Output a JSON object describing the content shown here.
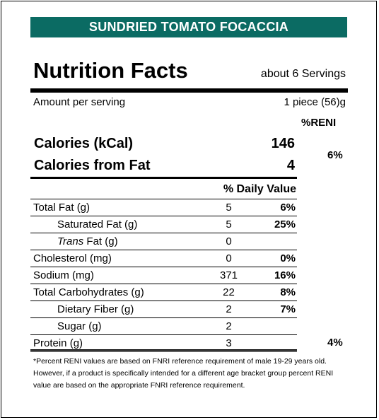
{
  "product_name": "SUNDRIED TOMATO FOCACCIA",
  "title": "Nutrition Facts",
  "servings": "about 6 Servings",
  "amount_label": "Amount per serving",
  "serving_size": "1 piece (56)g",
  "reni_header": "%RENI",
  "calories": {
    "label": "Calories (kCal)",
    "value": "146"
  },
  "calories_from_fat": {
    "label": "Calories from Fat",
    "value": "4"
  },
  "calories_reni": "6%",
  "daily_value_header": "% Daily Value",
  "nutrients": [
    {
      "name": "Total Fat (g)",
      "amount": "5",
      "dv": "6%"
    },
    {
      "name": "Saturated Fat (g)",
      "amount": "5",
      "dv": "25%"
    },
    {
      "name_italic": "Trans",
      "name_rest": " Fat (g)",
      "amount": "0",
      "dv": ""
    },
    {
      "name": "Cholesterol (mg)",
      "amount": "0",
      "dv": "0%"
    },
    {
      "name": "Sodium (mg)",
      "amount": "371",
      "dv": "16%"
    },
    {
      "name": "Total Carbohydrates (g)",
      "amount": "22",
      "dv": "8%"
    },
    {
      "name": "Dietary Fiber (g)",
      "amount": "2",
      "dv": "7%"
    },
    {
      "name": "Sugar (g)",
      "amount": "2",
      "dv": ""
    },
    {
      "name": "Protein (g)",
      "amount": "3",
      "dv": ""
    }
  ],
  "protein_reni": "4%",
  "footnote": "*Percent RENI values are based on FNRI reference requirement of male 19-29 years old. However, if a product is specifically intended for a different age bracket group percent RENI value are based on the appropriate FNRI reference requirement.",
  "colors": {
    "banner": "#0b6b63"
  }
}
